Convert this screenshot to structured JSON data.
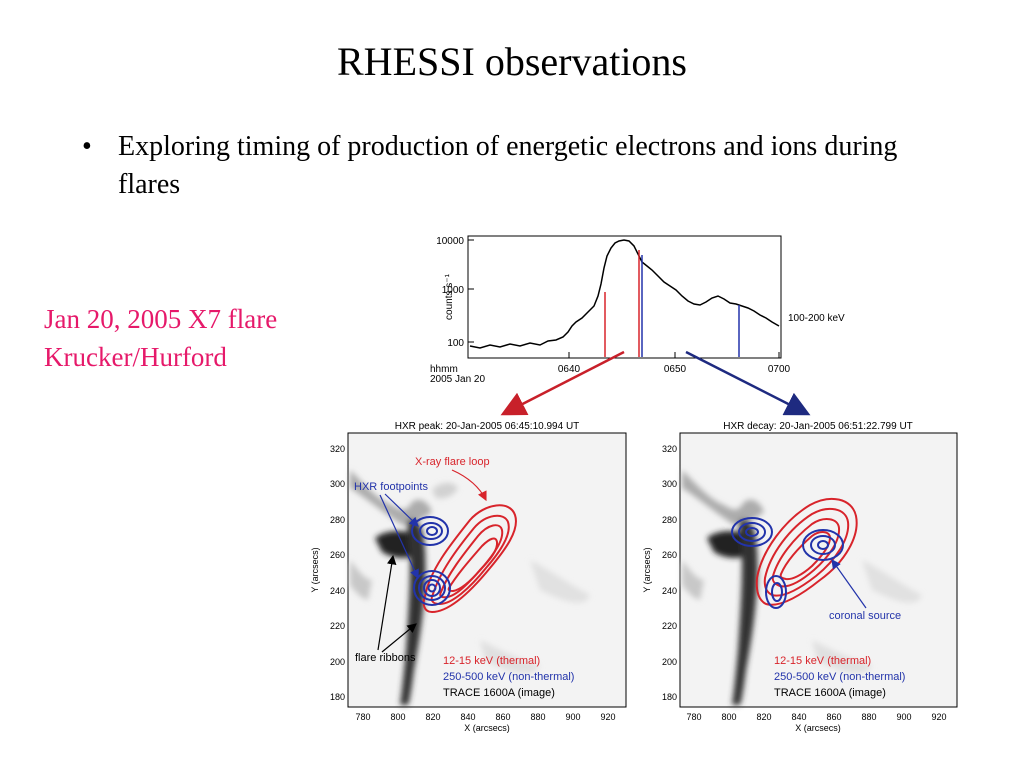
{
  "slide": {
    "title": "RHESSI observations",
    "bullet": "•",
    "bullet_text": "Exploring timing of production of energetic electrons and ions during flares",
    "caption_line1": "Jan 20, 2005 X7 flare",
    "caption_line2": "Krucker/Hurford"
  },
  "lightcurve": {
    "y_label": "counts s⁻¹",
    "y_ticks": [
      "10000",
      "1000",
      "100"
    ],
    "x_ticks": [
      "0640",
      "0650",
      "0700"
    ],
    "x_left_label1": "hhmm",
    "x_left_label2": "2005 Jan 20",
    "energy_label": "100-200 keV"
  },
  "panel_left": {
    "title": "HXR peak:  20-Jan-2005 06:45:10.994 UT",
    "y_ticks": [
      "320",
      "300",
      "280",
      "260",
      "240",
      "220",
      "200",
      "180"
    ],
    "x_ticks": [
      "780",
      "800",
      "820",
      "840",
      "860",
      "880",
      "900",
      "920"
    ],
    "x_label": "X (arcsecs)",
    "y_label": "Y (arcsecs)",
    "ann_loop": "X-ray flare loop",
    "ann_footpoints": "HXR footpoints",
    "ann_ribbons": "flare ribbons",
    "legend_red": "12-15 keV (thermal)",
    "legend_blue": "250-500 keV (non-thermal)",
    "legend_black": "TRACE 1600A (image)"
  },
  "panel_right": {
    "title": "HXR decay:  20-Jan-2005 06:51:22.799 UT",
    "y_ticks": [
      "320",
      "300",
      "280",
      "260",
      "240",
      "220",
      "200",
      "180"
    ],
    "x_ticks": [
      "780",
      "800",
      "820",
      "840",
      "860",
      "880",
      "900",
      "920"
    ],
    "x_label": "X (arcsecs)",
    "y_label": "Y (arcsecs)",
    "ann_coronal": "coronal source",
    "legend_red": "12-15 keV (thermal)",
    "legend_blue": "250-500 keV (non-thermal)",
    "legend_black": "TRACE 1600A (image)"
  },
  "colors": {
    "caption": "#e6196a",
    "red_contour": "#d8242b",
    "blue_contour": "#2233aa",
    "arrow_red": "#c8202a",
    "arrow_blue": "#1e2a80"
  }
}
